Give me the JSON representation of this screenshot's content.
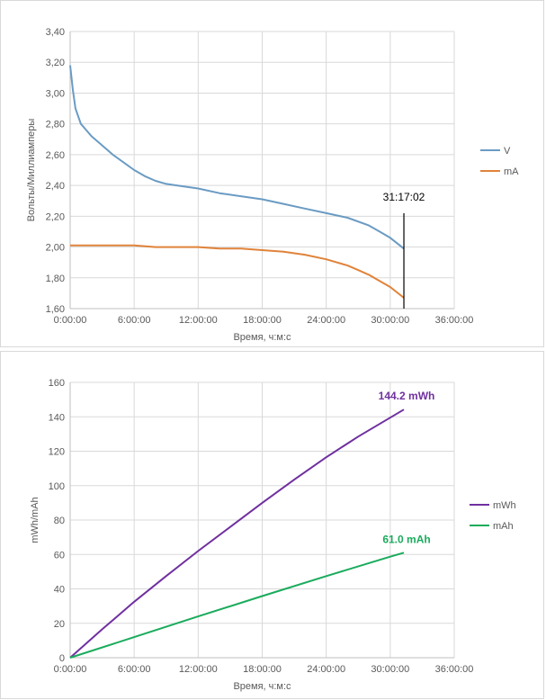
{
  "chart_data": [
    {
      "type": "line",
      "title": "",
      "xlabel": "Время,  ч:м:с",
      "ylabel": "Вольты/Миллиамперы",
      "xlim": [
        0,
        36
      ],
      "ylim": [
        1.6,
        3.4
      ],
      "grid": true,
      "legend_position": "right",
      "x_ticks": [
        "0:00:00",
        "6:00:00",
        "12:00:00",
        "18:00:00",
        "24:00:00",
        "30:00:00",
        "36:00:00"
      ],
      "y_ticks": [
        "1,60",
        "1,80",
        "2,00",
        "2,20",
        "2,40",
        "2,60",
        "2,80",
        "3,00",
        "3,20",
        "3,40"
      ],
      "series": [
        {
          "name": "V",
          "color": "#6a9bc3",
          "x": [
            0,
            0.25,
            0.5,
            1,
            1.5,
            2,
            3,
            4,
            5,
            6,
            7,
            8,
            9,
            10,
            12,
            14,
            16,
            18,
            20,
            22,
            24,
            26,
            28,
            29,
            30,
            31.28
          ],
          "y": [
            3.18,
            3.02,
            2.9,
            2.8,
            2.76,
            2.72,
            2.66,
            2.6,
            2.55,
            2.5,
            2.46,
            2.43,
            2.41,
            2.4,
            2.38,
            2.35,
            2.33,
            2.31,
            2.28,
            2.25,
            2.22,
            2.19,
            2.14,
            2.1,
            2.06,
            1.99
          ]
        },
        {
          "name": "mA",
          "color": "#e0833a",
          "x": [
            0,
            2,
            4,
            6,
            8,
            10,
            12,
            14,
            16,
            18,
            20,
            22,
            24,
            26,
            27,
            28,
            29,
            30,
            31.28
          ],
          "y": [
            2.01,
            2.01,
            2.01,
            2.01,
            2.0,
            2.0,
            2.0,
            1.99,
            1.99,
            1.98,
            1.97,
            1.95,
            1.92,
            1.88,
            1.85,
            1.82,
            1.78,
            1.74,
            1.67
          ]
        }
      ],
      "annotations": [
        {
          "text": "31:17:02",
          "x": 31.28
        }
      ]
    },
    {
      "type": "line",
      "title": "",
      "xlabel": "Время,  ч:м:с",
      "ylabel": "mWh/mAh",
      "xlim": [
        0,
        36
      ],
      "ylim": [
        0,
        160
      ],
      "grid": true,
      "legend_position": "right",
      "x_ticks": [
        "0:00:00",
        "6:00:00",
        "12:00:00",
        "18:00:00",
        "24:00:00",
        "30:00:00",
        "36:00:00"
      ],
      "y_ticks": [
        "0",
        "20",
        "40",
        "60",
        "80",
        "100",
        "120",
        "140",
        "160"
      ],
      "series": [
        {
          "name": "mWh",
          "color": "#7030a0",
          "x": [
            0,
            3,
            6,
            9,
            12,
            15,
            18,
            21,
            24,
            27,
            30,
            31.28
          ],
          "y": [
            0,
            16.5,
            32.5,
            47.5,
            62,
            76,
            90,
            103.5,
            116.5,
            128.5,
            139.5,
            144.2
          ]
        },
        {
          "name": "mAh",
          "color": "#1aab5c",
          "x": [
            0,
            6,
            12,
            18,
            24,
            30,
            31.28
          ],
          "y": [
            0,
            12,
            24,
            35.8,
            47.4,
            58.7,
            61.0
          ]
        }
      ],
      "annotations": [
        {
          "text": "144.2 mWh",
          "color": "#7030a0"
        },
        {
          "text": "61.0 mAh",
          "color": "#1aab5c"
        }
      ]
    }
  ]
}
